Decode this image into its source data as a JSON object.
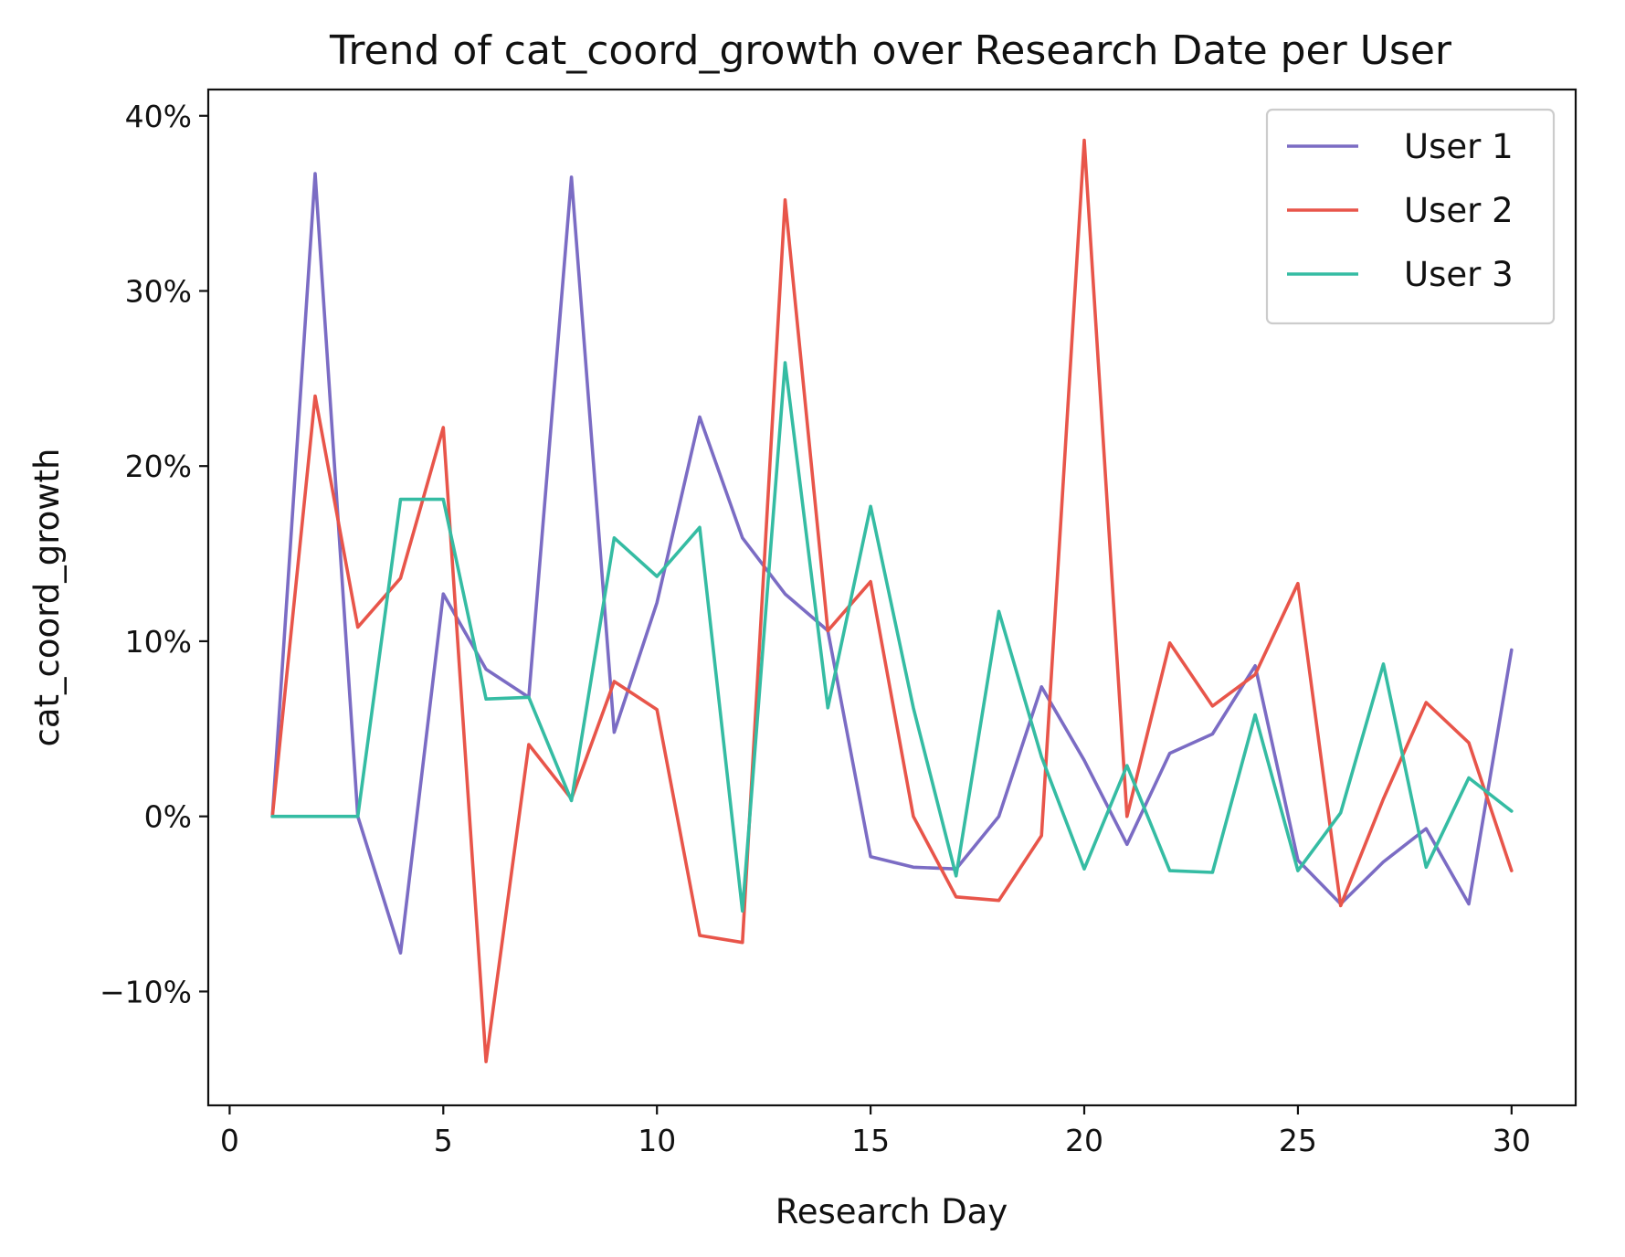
{
  "chart_data": {
    "type": "line",
    "title": "Trend of cat_coord_growth over Research Date per User",
    "xlabel": "Research Day",
    "ylabel": "cat_coord_growth",
    "xlim": [
      -0.5,
      31.5
    ],
    "ylim": [
      -16.5,
      41.5
    ],
    "x_ticks": [
      0,
      5,
      10,
      15,
      20,
      25,
      30
    ],
    "x_tick_labels": [
      "0",
      "5",
      "10",
      "15",
      "20",
      "25",
      "30"
    ],
    "y_ticks": [
      -10,
      0,
      10,
      20,
      30,
      40
    ],
    "y_tick_labels": [
      "−10%",
      "0%",
      "10%",
      "20%",
      "30%",
      "40%"
    ],
    "grid": false,
    "legend_position": "top-right",
    "x": [
      1,
      2,
      3,
      4,
      5,
      6,
      7,
      8,
      9,
      10,
      11,
      12,
      13,
      14,
      15,
      16,
      17,
      18,
      19,
      20,
      21,
      22,
      23,
      24,
      25,
      26,
      27,
      28,
      29,
      30
    ],
    "series": [
      {
        "name": "User 1",
        "color": "#7b6cc4",
        "values": [
          0,
          36.7,
          0,
          -7.8,
          12.7,
          8.4,
          6.8,
          36.5,
          4.8,
          12.2,
          22.8,
          15.9,
          12.7,
          10.6,
          -2.3,
          -2.9,
          -3.0,
          0,
          7.4,
          3.2,
          -1.6,
          3.6,
          4.7,
          8.6,
          -2.5,
          -5.0,
          -2.6,
          -0.7,
          -5.0,
          9.5
        ]
      },
      {
        "name": "User 2",
        "color": "#e8554a",
        "values": [
          0,
          24.0,
          10.8,
          13.6,
          22.2,
          -14.0,
          4.1,
          1.0,
          7.7,
          6.1,
          -6.8,
          -7.2,
          35.2,
          10.6,
          13.4,
          0,
          -4.6,
          -4.8,
          -1.1,
          38.6,
          0,
          9.9,
          6.3,
          8.1,
          13.3,
          -5.1,
          1.0,
          6.5,
          4.2,
          -3.1
        ]
      },
      {
        "name": "User 3",
        "color": "#35bca3",
        "values": [
          0,
          0,
          0,
          18.1,
          18.1,
          6.7,
          6.8,
          0.9,
          15.9,
          13.7,
          16.5,
          -5.4,
          25.9,
          6.2,
          17.7,
          6.2,
          -3.4,
          11.7,
          3.4,
          -3.0,
          2.9,
          -3.1,
          -3.2,
          5.8,
          -3.1,
          0.2,
          8.7,
          -2.9,
          2.2,
          0.3
        ]
      }
    ]
  }
}
